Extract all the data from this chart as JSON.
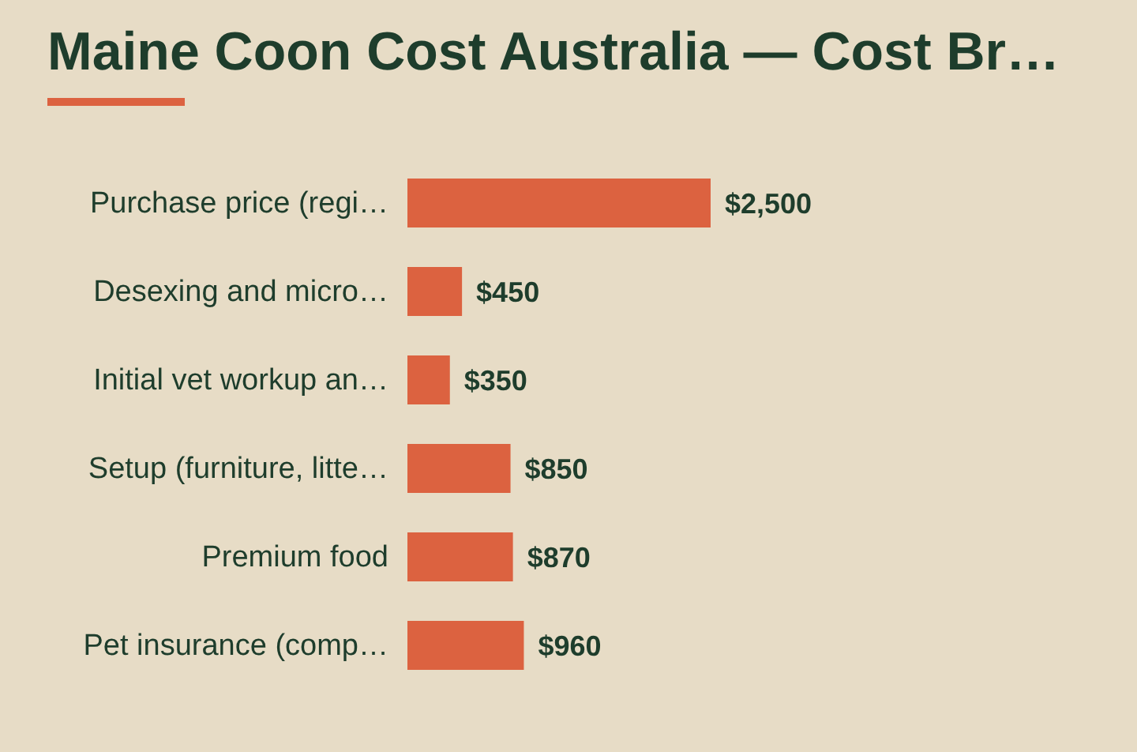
{
  "chart_data": {
    "type": "bar",
    "orientation": "horizontal",
    "title": "Maine Coon Cost Australia — Cost Br…",
    "categories": [
      "Purchase price (regi…",
      "Desexing and micro…",
      "Initial vet workup an…",
      "Setup (furniture, litte…",
      "Premium food",
      "Pet insurance (comp…"
    ],
    "values": [
      2500,
      450,
      350,
      850,
      870,
      960
    ],
    "value_labels": [
      "$2,500",
      "$450",
      "$350",
      "$850",
      "$870",
      "$960"
    ],
    "color": "#dc6240",
    "grid": false,
    "legend": false
  }
}
